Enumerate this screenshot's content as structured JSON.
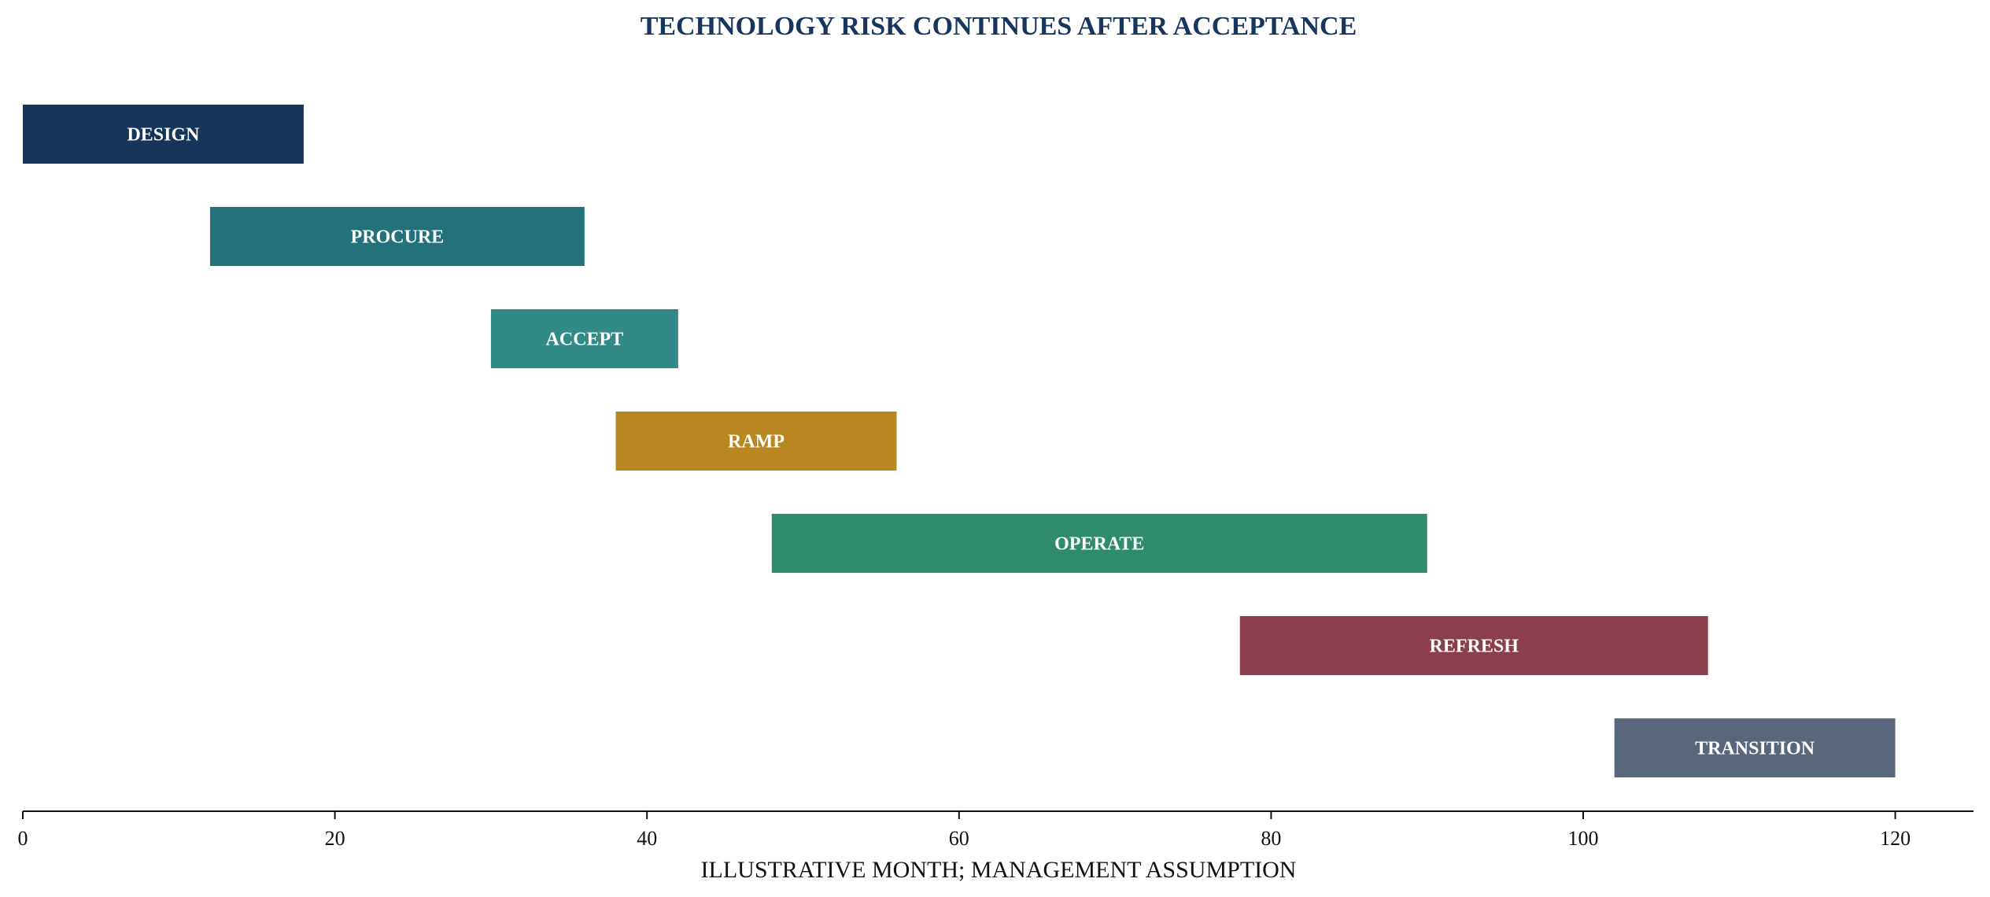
{
  "chart_data": {
    "type": "bar",
    "orientation": "horizontal-gantt",
    "title": "TECHNOLOGY RISK CONTINUES AFTER ACCEPTANCE",
    "xlabel": "ILLUSTRATIVE MONTH; MANAGEMENT ASSUMPTION",
    "ylabel": "",
    "xlim": [
      0,
      125
    ],
    "xticks": [
      0,
      20,
      40,
      60,
      80,
      100,
      120
    ],
    "grid": false,
    "tasks": [
      {
        "label": "DESIGN",
        "start": 0,
        "end": 18,
        "color": "#15355a"
      },
      {
        "label": "PROCURE",
        "start": 12,
        "end": 36,
        "color": "#23717a"
      },
      {
        "label": "ACCEPT",
        "start": 30,
        "end": 42,
        "color": "#328a88"
      },
      {
        "label": "RAMP",
        "start": 38,
        "end": 56,
        "color": "#b8871f"
      },
      {
        "label": "OPERATE",
        "start": 48,
        "end": 90,
        "color": "#2f8c6a"
      },
      {
        "label": "REFRESH",
        "start": 78,
        "end": 108,
        "color": "#8b3e4d"
      },
      {
        "label": "TRANSITION",
        "start": 102,
        "end": 120,
        "color": "#59677c"
      }
    ]
  }
}
